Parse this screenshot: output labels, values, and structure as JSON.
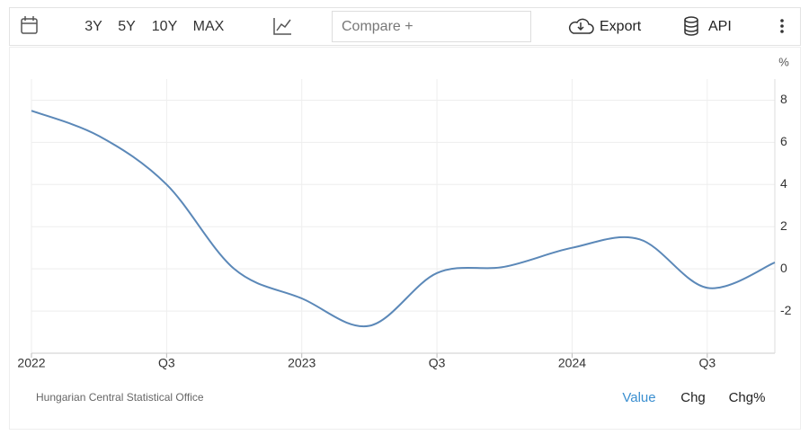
{
  "toolbar": {
    "ranges": [
      "3Y",
      "5Y",
      "10Y",
      "MAX"
    ],
    "compare": "Compare +",
    "export": "Export",
    "api": "API"
  },
  "chart_data": {
    "type": "line",
    "unit": "%",
    "categories": [
      "2022",
      null,
      "Q3",
      null,
      "2023",
      null,
      "Q3",
      null,
      "2024",
      null,
      "Q3",
      null
    ],
    "series": [
      {
        "color": "#5b88b8",
        "values": [
          7.5,
          6.3,
          4.0,
          0.0,
          -1.4,
          -2.7,
          -0.2,
          0.1,
          1.0,
          1.4,
          -0.9,
          0.3
        ]
      }
    ],
    "ylim": [
      -4,
      9
    ],
    "yticks": [
      -2,
      0,
      2,
      4,
      6,
      8
    ],
    "grid": true
  },
  "footer": {
    "source": "Hungarian Central Statistical Office",
    "views": [
      "Value",
      "Chg",
      "Chg%"
    ]
  }
}
